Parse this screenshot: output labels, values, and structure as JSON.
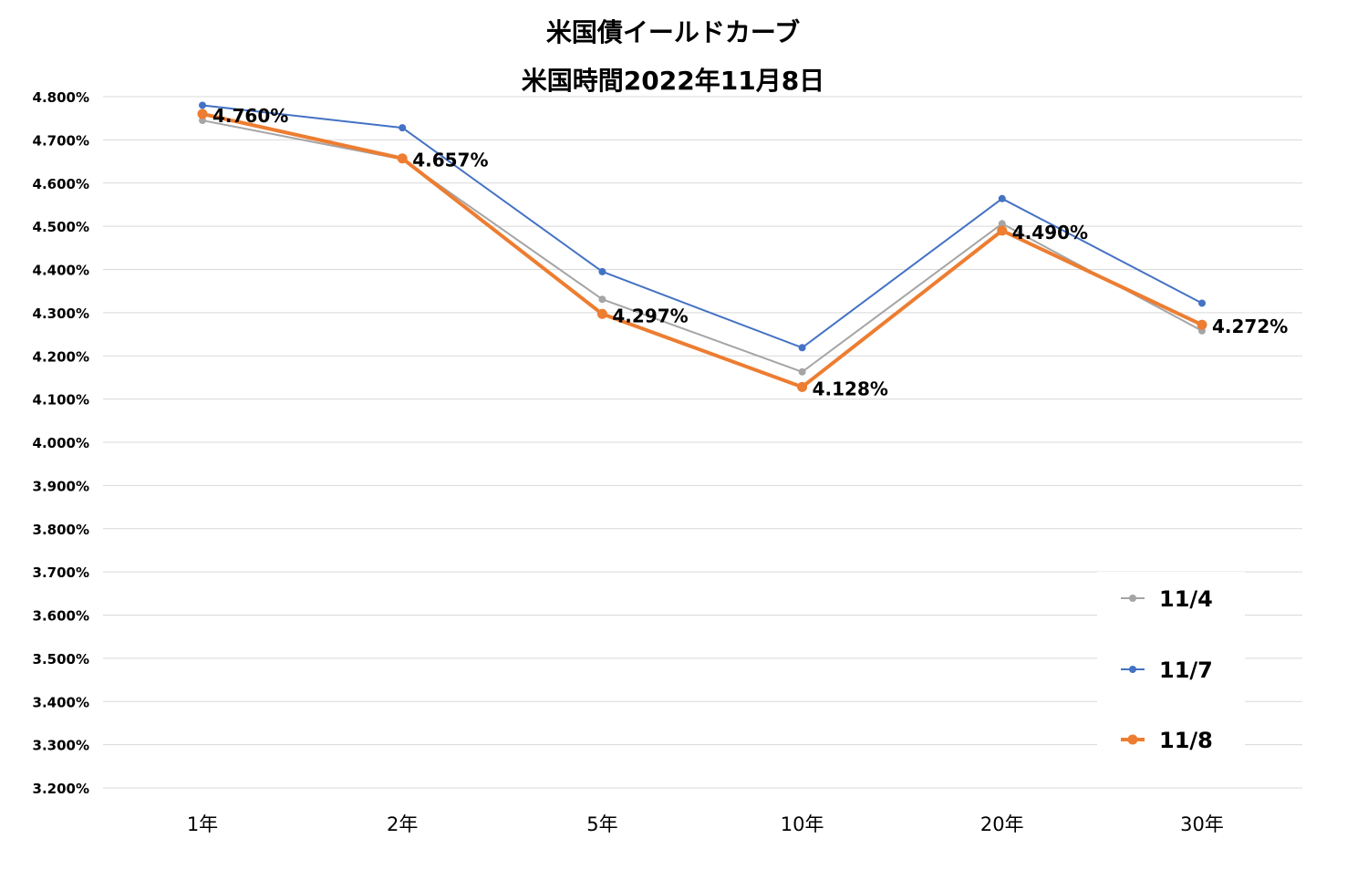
{
  "chart_data": {
    "type": "line",
    "title": "米国債イールドカーブ",
    "subtitle": "米国時間2022年11月8日",
    "categories": [
      "1年",
      "2年",
      "5年",
      "10年",
      "20年",
      "30年"
    ],
    "ylim": [
      3.2,
      4.8
    ],
    "ytick_step": 0.1,
    "ytick_labels": [
      "3.200%",
      "3.300%",
      "3.400%",
      "3.500%",
      "3.600%",
      "3.700%",
      "3.800%",
      "3.900%",
      "4.000%",
      "4.100%",
      "4.200%",
      "4.300%",
      "4.400%",
      "4.500%",
      "4.600%",
      "4.700%",
      "4.800%"
    ],
    "grid": true,
    "legend_position": "bottom-right",
    "series": [
      {
        "name": "11/4",
        "color": "#a5a5a5",
        "values": [
          4.745,
          4.655,
          4.331,
          4.163,
          4.506,
          4.258
        ]
      },
      {
        "name": "11/7",
        "color": "#4472c4",
        "values": [
          4.78,
          4.728,
          4.395,
          4.219,
          4.564,
          4.322
        ]
      },
      {
        "name": "11/8",
        "color": "#ed7d31",
        "values": [
          4.76,
          4.657,
          4.297,
          4.128,
          4.49,
          4.272
        ],
        "data_labels": [
          "4.760%",
          "4.657%",
          "4.297%",
          "4.128%",
          "4.490%",
          "4.272%"
        ]
      }
    ]
  }
}
